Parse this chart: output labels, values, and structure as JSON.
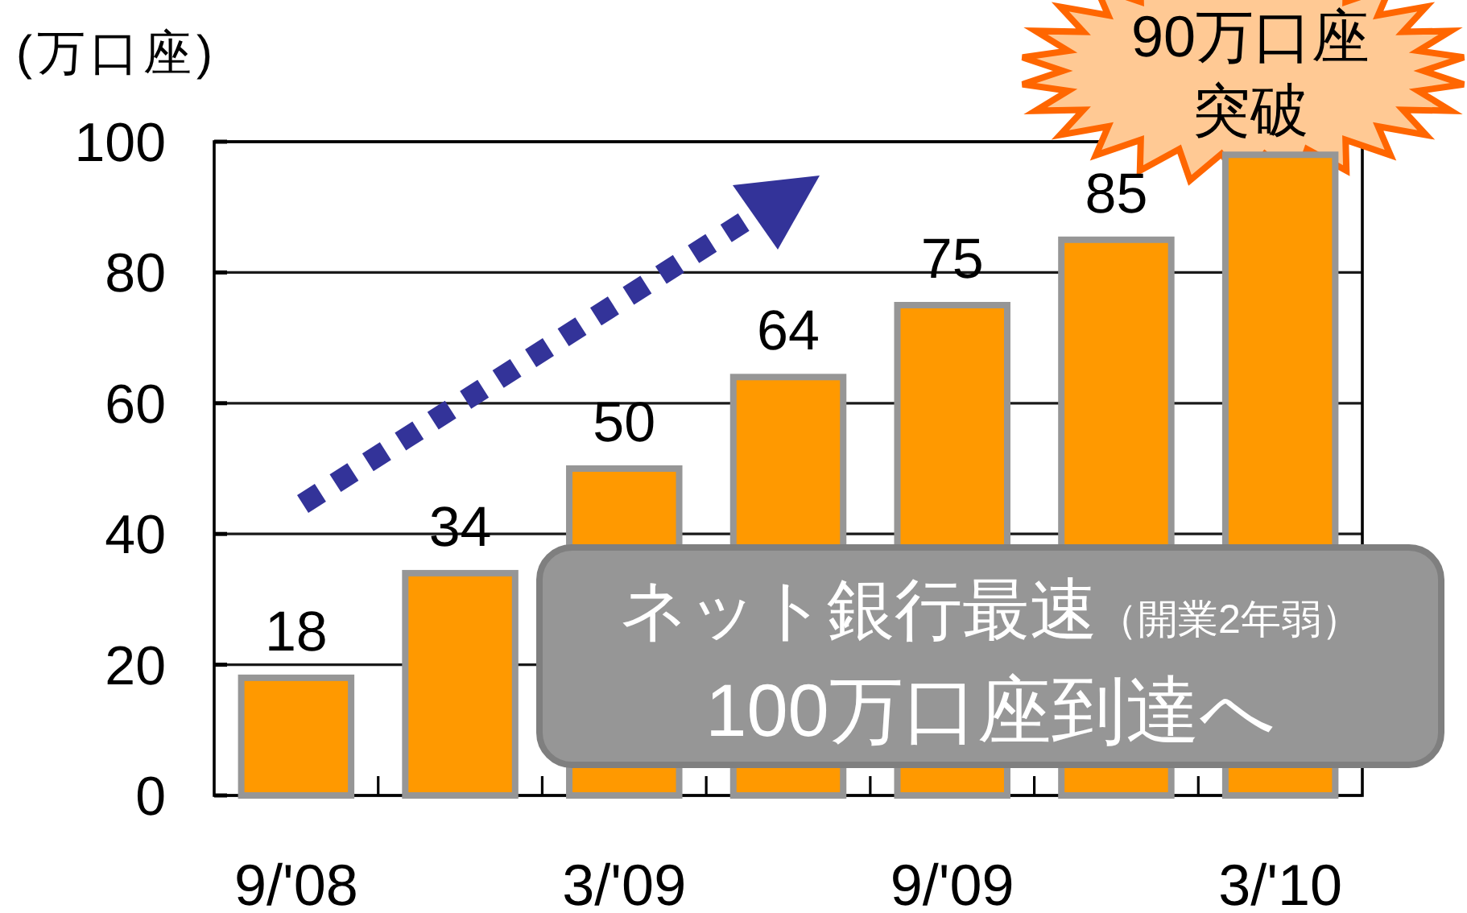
{
  "chart_data": {
    "type": "bar",
    "ylabel": "(万口座)",
    "categories": [
      "9/'08",
      null,
      "3/'09",
      null,
      "9/'09",
      null,
      "3/'10"
    ],
    "values": [
      18,
      34,
      50,
      64,
      75,
      85,
      98
    ],
    "value_labels": [
      "18",
      "34",
      "50",
      "64",
      "75",
      "85",
      null
    ],
    "color": "#ff9900",
    "ylim": [
      0,
      100
    ],
    "yticks": [
      0,
      20,
      40,
      60,
      80,
      100
    ],
    "grid": "y",
    "annotations": [
      "90万口座突破",
      "ネット銀行最速",
      "（開業2年弱）",
      "100万口座到達へ"
    ]
  }
}
